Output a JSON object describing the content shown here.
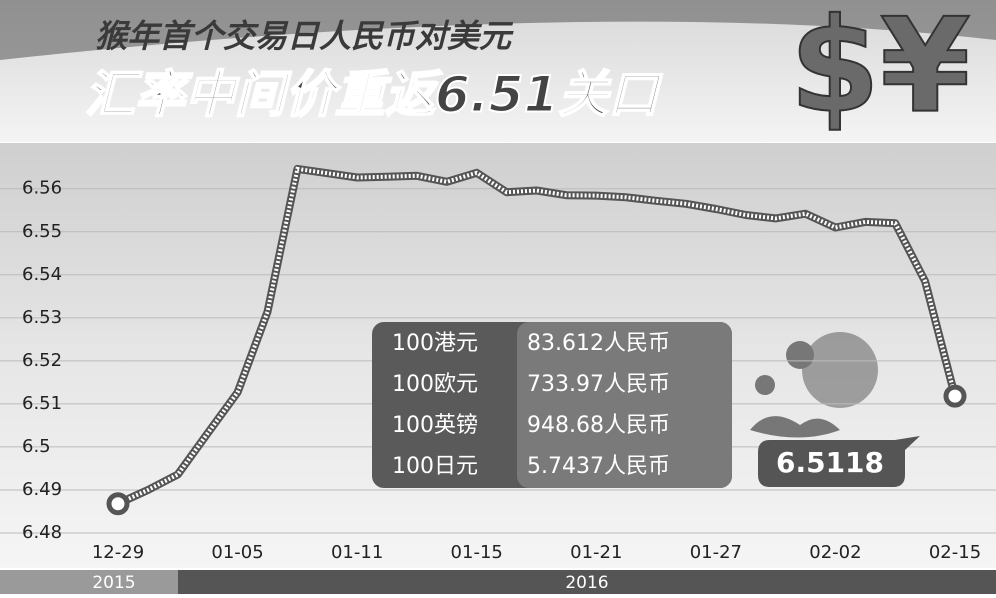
{
  "chart_data": {
    "type": "line",
    "subtitle": "猴年首个交易日人民币对美元",
    "title": "汇率中间价重返6.51关口",
    "logo_text": "$¥",
    "categories": [
      "12-29",
      null,
      null,
      null,
      "01-05",
      null,
      null,
      null,
      "01-11",
      null,
      null,
      null,
      "01-15",
      null,
      null,
      null,
      "01-21",
      null,
      null,
      null,
      "01-27",
      null,
      null,
      null,
      "02-02",
      null,
      null,
      null,
      "02-15"
    ],
    "values": [
      6.4868,
      6.49,
      6.4936,
      6.5032,
      6.5127,
      6.5314,
      6.5646,
      6.5636,
      6.5626,
      6.5628,
      6.563,
      6.5616,
      6.5637,
      6.5592,
      6.5596,
      6.5585,
      6.5584,
      6.558,
      6.5572,
      6.5565,
      6.5553,
      6.5539,
      6.5531,
      6.5542,
      6.551,
      6.5523,
      6.552,
      6.5385,
      6.5118
    ],
    "color": "#555555",
    "ylim": [
      6.48,
      6.569
    ],
    "yticks": [
      6.48,
      6.49,
      6.5,
      6.51,
      6.52,
      6.53,
      6.54,
      6.55,
      6.56
    ],
    "grid": true,
    "years": [
      "2015",
      "2016"
    ],
    "rates": [
      [
        "100港元",
        "83.612人民币"
      ],
      [
        "100欧元",
        "733.97人民币"
      ],
      [
        "100英镑",
        "948.68人民币"
      ],
      [
        "100日元",
        "5.7437人民币"
      ]
    ]
  }
}
